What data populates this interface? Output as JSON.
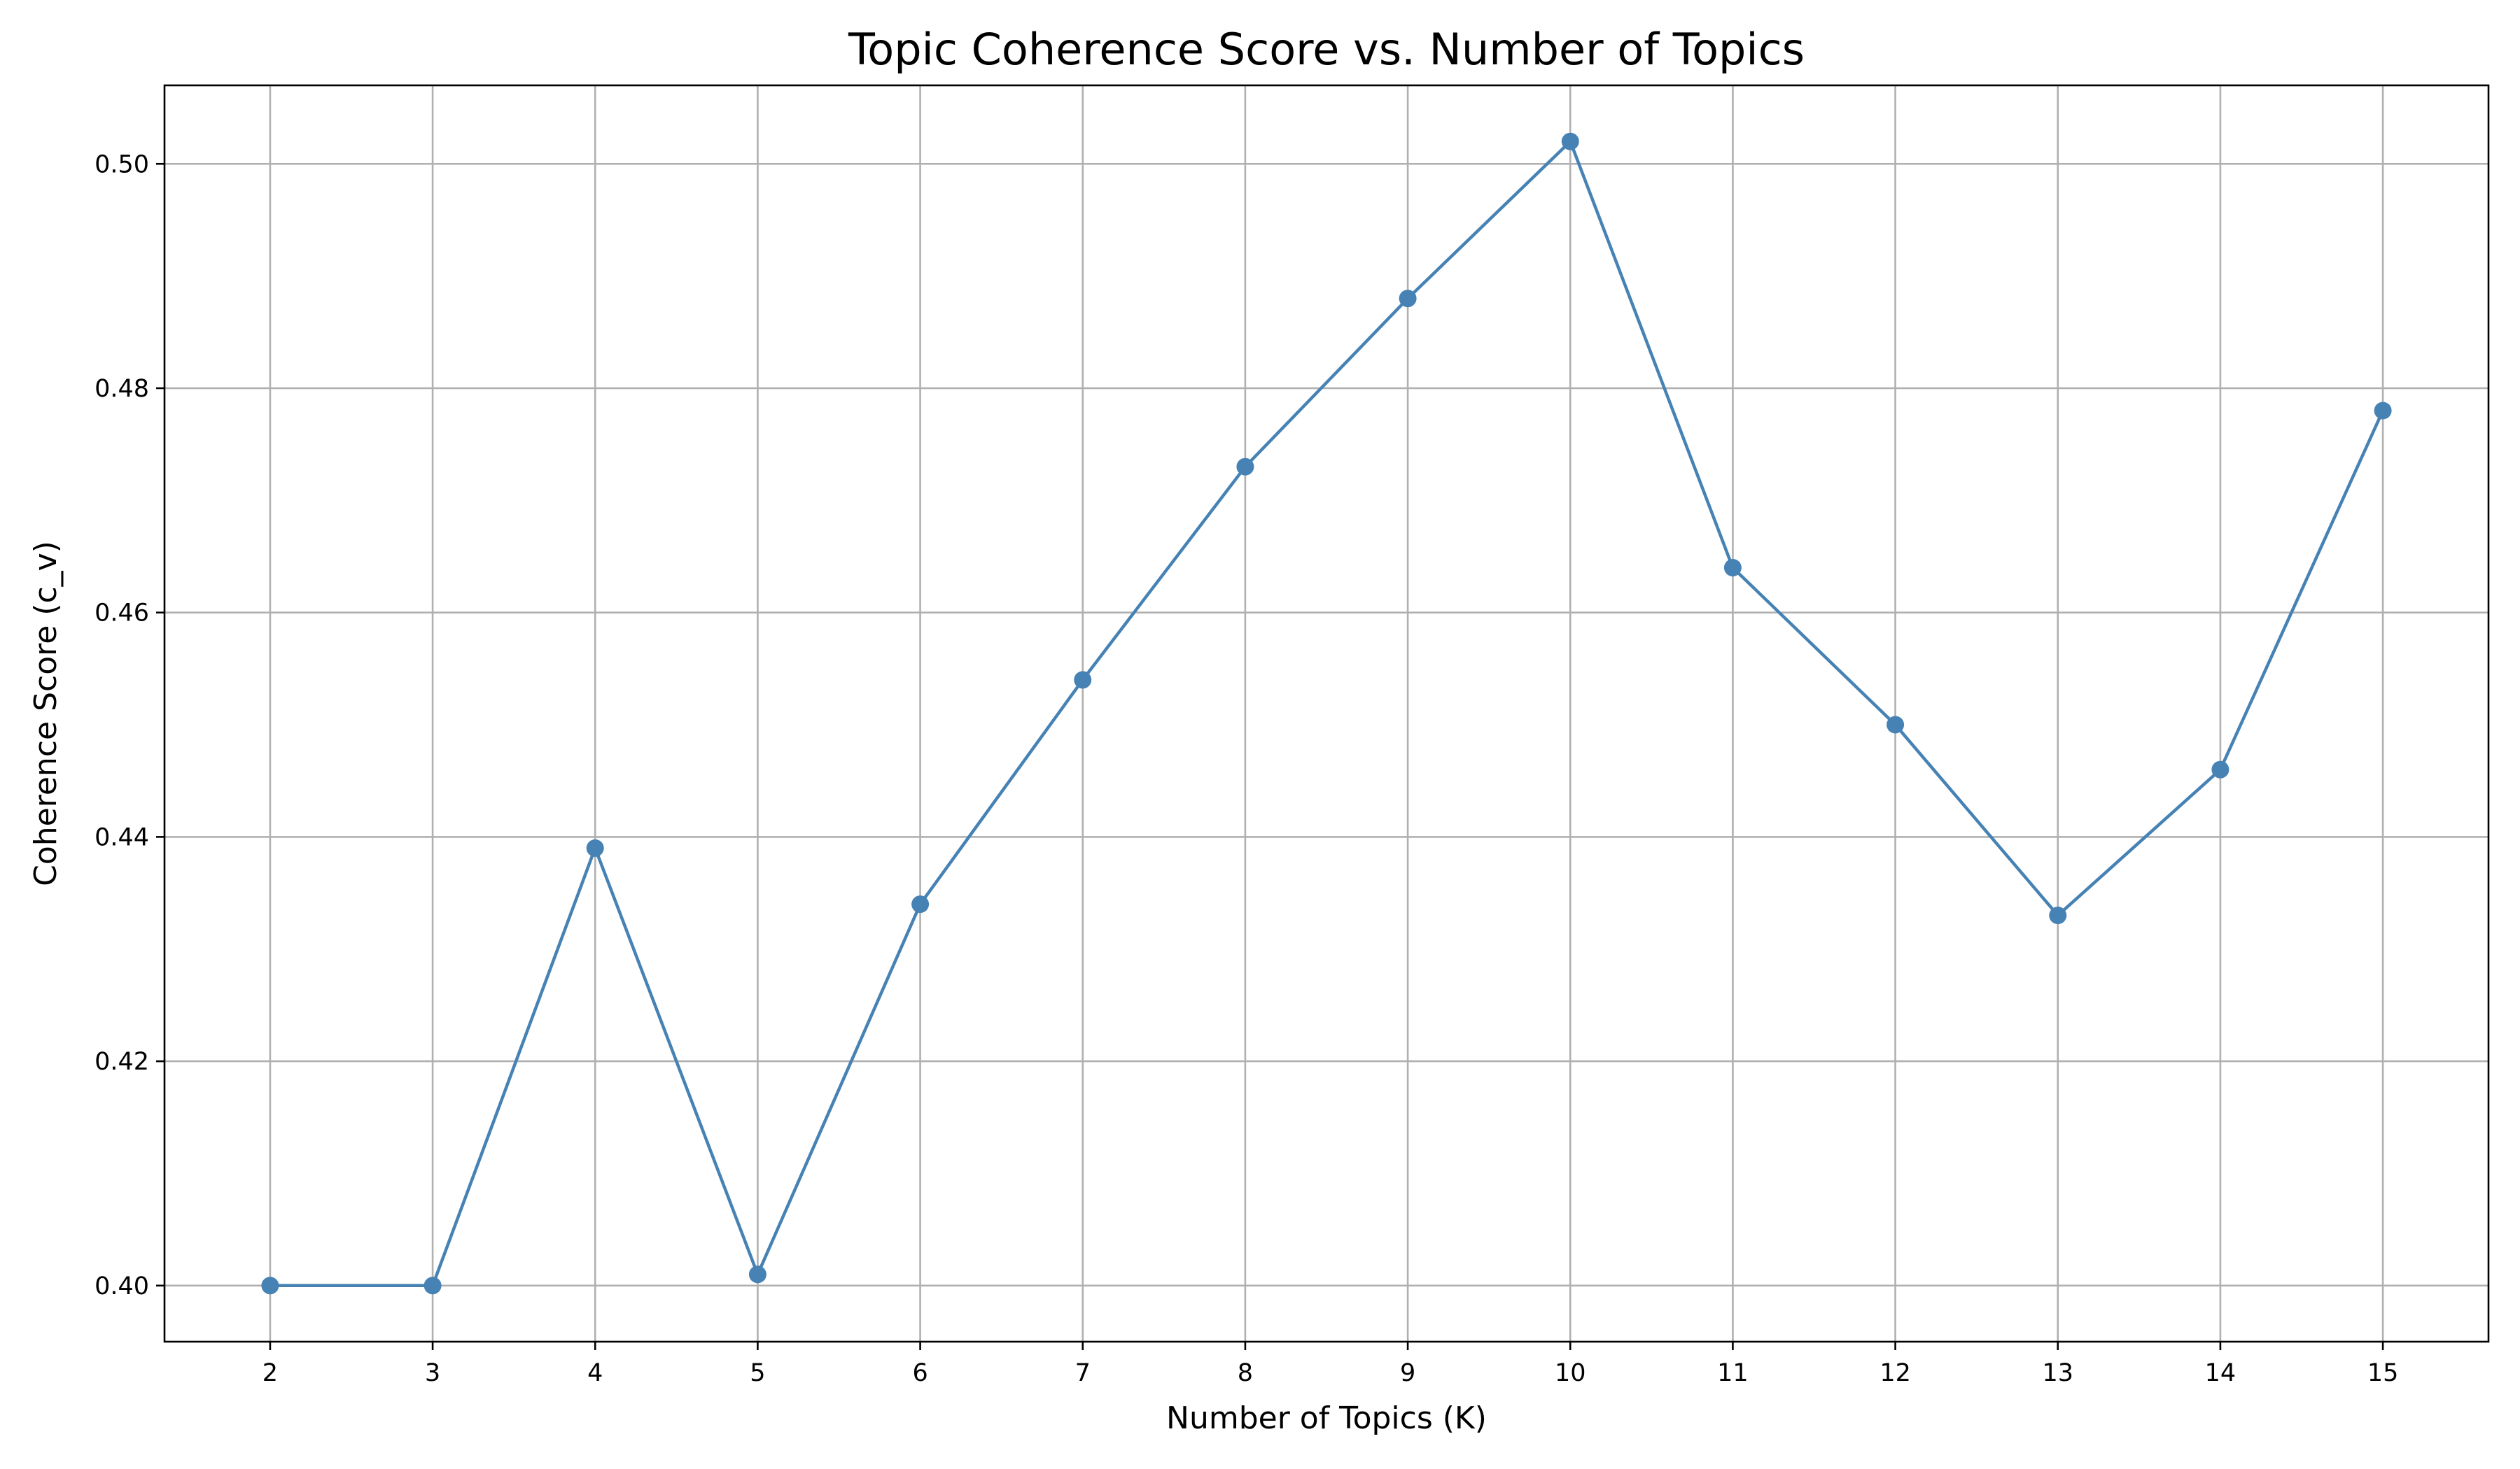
{
  "chart_data": {
    "type": "line",
    "title": "Topic Coherence Score vs. Number of Topics",
    "xlabel": "Number of Topics (K)",
    "ylabel": "Coherence Score (c_v)",
    "x": [
      2,
      3,
      4,
      5,
      6,
      7,
      8,
      9,
      10,
      11,
      12,
      13,
      14,
      15
    ],
    "series": [
      {
        "values": [
          0.4,
          0.4,
          0.439,
          0.401,
          0.434,
          0.454,
          0.473,
          0.488,
          0.502,
          0.464,
          0.45,
          0.433,
          0.446,
          0.478
        ],
        "color": "#4682b4",
        "marker": "circle"
      }
    ],
    "xticks": [
      "2",
      "3",
      "4",
      "5",
      "6",
      "7",
      "8",
      "9",
      "10",
      "11",
      "12",
      "13",
      "14",
      "15"
    ],
    "yticks": [
      "0.40",
      "0.42",
      "0.44",
      "0.46",
      "0.48",
      "0.50"
    ],
    "xlim": [
      1.35,
      15.65
    ],
    "ylim": [
      0.395,
      0.507
    ],
    "grid": true,
    "legend": "none"
  }
}
